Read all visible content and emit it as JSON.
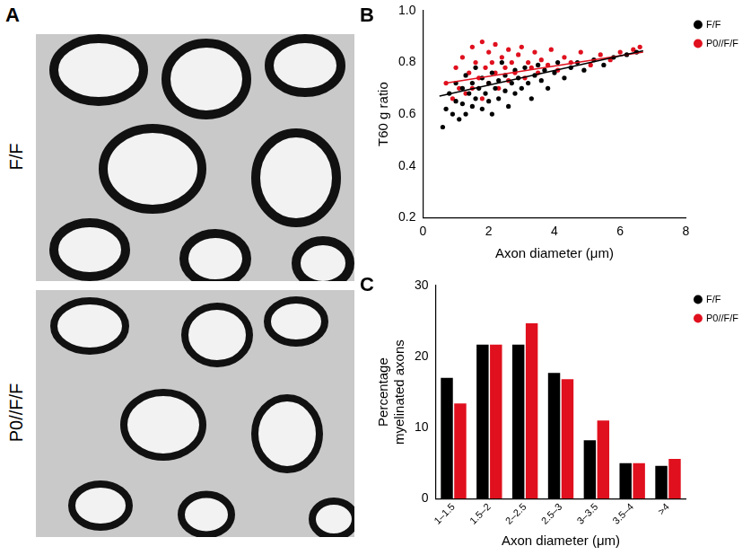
{
  "images": {
    "panel_label": "A",
    "labels": [
      "F/F",
      "P0//F/F"
    ]
  },
  "chart_data": [
    {
      "panel_label": "B",
      "type": "scatter",
      "xlabel": "Axon diameter (μm)",
      "ylabel": "T60 g ratio",
      "xlim": [
        0,
        8
      ],
      "xticks": [
        0,
        2,
        4,
        6,
        8
      ],
      "ylim": [
        0.2,
        1.0
      ],
      "yticks": [
        0.2,
        0.4,
        0.6,
        0.8,
        {
          "value": 1.0,
          "label": "1.0"
        }
      ],
      "grid": false,
      "legend": "top-right",
      "marker": "circle",
      "series": [
        {
          "name": "F/F",
          "color": "#000000",
          "x": [
            0.6,
            0.7,
            0.8,
            0.9,
            1.0,
            1.0,
            1.1,
            1.2,
            1.2,
            1.3,
            1.3,
            1.4,
            1.5,
            1.5,
            1.6,
            1.6,
            1.7,
            1.8,
            1.8,
            1.9,
            2.0,
            2.0,
            2.1,
            2.1,
            2.2,
            2.3,
            2.3,
            2.4,
            2.5,
            2.5,
            2.6,
            2.7,
            2.8,
            2.8,
            2.9,
            3.0,
            3.1,
            3.2,
            3.3,
            3.4,
            3.5,
            3.6,
            3.7,
            3.8,
            4.0,
            4.1,
            4.3,
            4.5,
            4.7,
            4.9,
            5.2,
            5.5,
            5.8,
            6.2,
            6.5
          ],
          "values": [
            0.55,
            0.62,
            0.68,
            0.6,
            0.65,
            0.72,
            0.58,
            0.7,
            0.64,
            0.75,
            0.6,
            0.68,
            0.72,
            0.63,
            0.66,
            0.78,
            0.7,
            0.62,
            0.74,
            0.68,
            0.72,
            0.65,
            0.76,
            0.6,
            0.7,
            0.73,
            0.66,
            0.8,
            0.69,
            0.75,
            0.63,
            0.72,
            0.77,
            0.68,
            0.74,
            0.7,
            0.78,
            0.72,
            0.66,
            0.75,
            0.79,
            0.73,
            0.77,
            0.7,
            0.76,
            0.8,
            0.74,
            0.78,
            0.8,
            0.77,
            0.81,
            0.79,
            0.82,
            0.83,
            0.84
          ]
        },
        {
          "name": "P0//F/F",
          "color": "#e0101e",
          "x": [
            0.7,
            0.9,
            1.0,
            1.1,
            1.2,
            1.3,
            1.4,
            1.5,
            1.5,
            1.6,
            1.7,
            1.8,
            1.8,
            1.9,
            2.0,
            2.0,
            2.1,
            2.2,
            2.2,
            2.3,
            2.4,
            2.5,
            2.6,
            2.6,
            2.7,
            2.8,
            2.9,
            3.0,
            3.1,
            3.2,
            3.3,
            3.4,
            3.5,
            3.6,
            3.8,
            3.9,
            4.1,
            4.3,
            4.5,
            4.8,
            5.1,
            5.4,
            5.7,
            6.0,
            6.4,
            6.6
          ],
          "values": [
            0.72,
            0.66,
            0.78,
            0.7,
            0.82,
            0.68,
            0.76,
            0.86,
            0.7,
            0.8,
            0.74,
            0.88,
            0.66,
            0.78,
            0.84,
            0.72,
            0.8,
            0.76,
            0.87,
            0.7,
            0.82,
            0.78,
            0.85,
            0.73,
            0.8,
            0.76,
            0.83,
            0.86,
            0.74,
            0.8,
            0.78,
            0.84,
            0.76,
            0.81,
            0.79,
            0.85,
            0.77,
            0.82,
            0.8,
            0.84,
            0.79,
            0.83,
            0.81,
            0.84,
            0.85,
            0.86
          ]
        }
      ],
      "trend_lines": [
        {
          "color": "#000000",
          "x": [
            0.5,
            6.7
          ],
          "values": [
            0.67,
            0.845
          ]
        },
        {
          "color": "#e0101e",
          "x": [
            0.7,
            6.7
          ],
          "values": [
            0.72,
            0.84
          ]
        }
      ]
    },
    {
      "panel_label": "C",
      "type": "bar",
      "xlabel": "Axon diameter (μm)",
      "ylabel": [
        "Percentage",
        "myelinated axons"
      ],
      "categories": [
        "1–1.5",
        "1.5–2",
        "2–2.5",
        "2.5–3",
        "3–3.5",
        "3.5–4",
        ">4"
      ],
      "ylim": [
        0,
        30
      ],
      "yticks": [
        0,
        10,
        20,
        30
      ],
      "grid": false,
      "legend": "top-right",
      "series": [
        {
          "name": "F/F",
          "color": "#000000",
          "values": [
            17,
            21.7,
            21.7,
            17.7,
            8.2,
            5,
            4.6
          ]
        },
        {
          "name": "P0//F/F",
          "color": "#e0101e",
          "values": [
            13.4,
            21.7,
            24.7,
            16.8,
            11,
            5,
            5.6
          ]
        }
      ]
    }
  ]
}
